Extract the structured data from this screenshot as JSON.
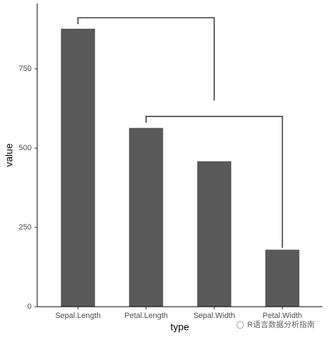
{
  "chart_data": {
    "type": "bar",
    "categories": [
      "Sepal.Length",
      "Petal.Length",
      "Sepal.Width",
      "Petal.Width"
    ],
    "values": [
      876.5,
      563.7,
      458.6,
      179.9
    ],
    "color": "#595959",
    "ylim": [
      0,
      956
    ],
    "yticks": [
      0,
      250,
      500,
      750
    ],
    "xlabel": "type",
    "ylabel": "value",
    "brackets": [
      {
        "from": 0,
        "to": 2,
        "top": 911,
        "left_end": 891,
        "right_end": 650
      },
      {
        "from": 1,
        "to": 3,
        "top": 600,
        "left_end": 580,
        "right_end": 186
      }
    ],
    "watermark": "R语言数据分析指南"
  }
}
